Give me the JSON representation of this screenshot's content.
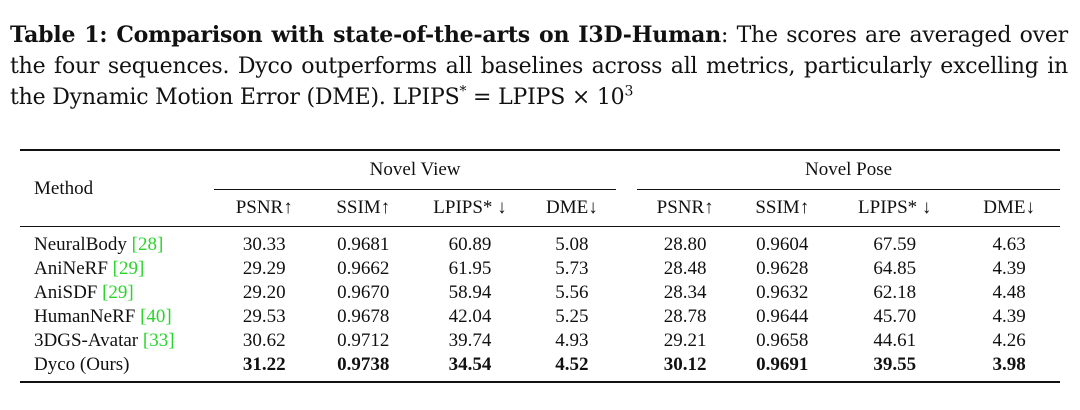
{
  "caption": {
    "label": "Table 1: Comparison with state-of-the-arts on I3D-Human",
    "text": ": The scores are averaged over the four sequences. Dyco outperforms all baselines across all metrics, particularly excelling in the Dynamic Motion Error (DME). LPIPS",
    "star": "*",
    "tail_mid": " = LPIPS × 10",
    "tail_exp": "3"
  },
  "table": {
    "method_header": "Method",
    "groups": [
      "Novel View",
      "Novel Pose"
    ],
    "metrics": [
      "PSNR↑",
      "SSIM↑",
      "LPIPS* ↓",
      "DME↓",
      "PSNR↑",
      "SSIM↑",
      "LPIPS* ↓",
      "DME↓"
    ],
    "rows": [
      {
        "method": "NeuralBody ",
        "ref": "[28]",
        "values": [
          "30.33",
          "0.9681",
          "60.89",
          "5.08",
          "28.80",
          "0.9604",
          "67.59",
          "4.63"
        ]
      },
      {
        "method": "AniNeRF ",
        "ref": "[29]",
        "values": [
          "29.29",
          "0.9662",
          "61.95",
          "5.73",
          "28.48",
          "0.9628",
          "64.85",
          "4.39"
        ]
      },
      {
        "method": "AniSDF ",
        "ref": "[29]",
        "values": [
          "29.20",
          "0.9670",
          "58.94",
          "5.56",
          "28.34",
          "0.9632",
          "62.18",
          "4.48"
        ]
      },
      {
        "method": "HumanNeRF ",
        "ref": "[40]",
        "values": [
          "29.53",
          "0.9678",
          "42.04",
          "5.25",
          "28.78",
          "0.9644",
          "45.70",
          "4.39"
        ]
      },
      {
        "method": "3DGS-Avatar ",
        "ref": "[33]",
        "values": [
          "30.62",
          "0.9712",
          "39.74",
          "4.93",
          "29.21",
          "0.9658",
          "44.61",
          "4.26"
        ]
      },
      {
        "method": "Dyco (Ours)",
        "ref": "",
        "values": [
          "31.22",
          "0.9738",
          "34.54",
          "4.52",
          "30.12",
          "0.9691",
          "39.55",
          "3.98"
        ]
      }
    ]
  }
}
